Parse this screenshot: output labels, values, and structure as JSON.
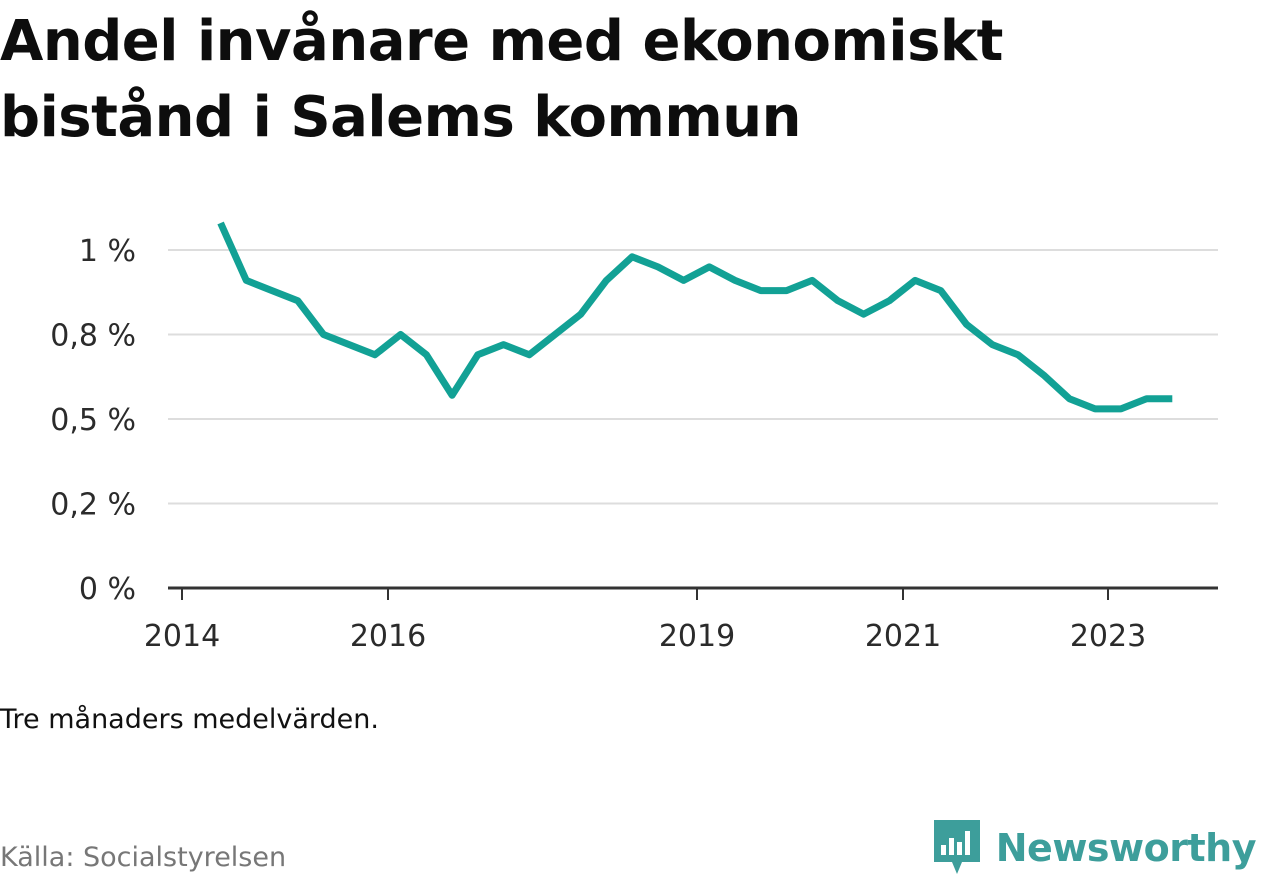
{
  "title": "Andel invånare med ekonomiskt bistånd i Salems kommun",
  "note": "Tre månaders medelvärden.",
  "source": "Källa: Socialstyrelsen",
  "brand": {
    "name": "Newsworthy",
    "icon": "newsworthy-logo-icon"
  },
  "colors": {
    "line": "#12a195",
    "grid": "#dddddd",
    "axis": "#333333",
    "brand": "#3d9e9b"
  },
  "chart_data": {
    "type": "line",
    "title": "Andel invånare med ekonomiskt bistånd i Salems kommun",
    "xlabel": "",
    "ylabel": "",
    "y_unit": "%",
    "ylim": [
      0,
      1.1
    ],
    "grid": true,
    "x_ticks": [
      "2014",
      "2016",
      "2019",
      "2021",
      "2023"
    ],
    "y_ticks": [
      "0 %",
      "0,2 %",
      "0,5 %",
      "0,8 %",
      "1 %"
    ],
    "series": [
      {
        "x": [
          "2014-05",
          "2014-08",
          "2014-11",
          "2015-02",
          "2015-05",
          "2015-08",
          "2015-11",
          "2016-02",
          "2016-05",
          "2016-08",
          "2016-11",
          "2017-02",
          "2017-05",
          "2017-08",
          "2017-11",
          "2018-02",
          "2018-05",
          "2018-08",
          "2018-11",
          "2019-02",
          "2019-05",
          "2019-08",
          "2019-11",
          "2020-02",
          "2020-05",
          "2020-08",
          "2020-11",
          "2021-02",
          "2021-05",
          "2021-08",
          "2021-11",
          "2022-02",
          "2022-05",
          "2022-08",
          "2022-11",
          "2023-02",
          "2023-05",
          "2023-08"
        ],
        "values": [
          1.08,
          0.91,
          0.88,
          0.85,
          0.75,
          0.72,
          0.69,
          0.75,
          0.69,
          0.57,
          0.69,
          0.72,
          0.69,
          0.75,
          0.81,
          0.91,
          0.98,
          0.95,
          0.91,
          0.95,
          0.91,
          0.88,
          0.88,
          0.91,
          0.85,
          0.81,
          0.85,
          0.91,
          0.88,
          0.78,
          0.72,
          0.69,
          0.63,
          0.56,
          0.53,
          0.53,
          0.56,
          0.56
        ]
      }
    ]
  }
}
